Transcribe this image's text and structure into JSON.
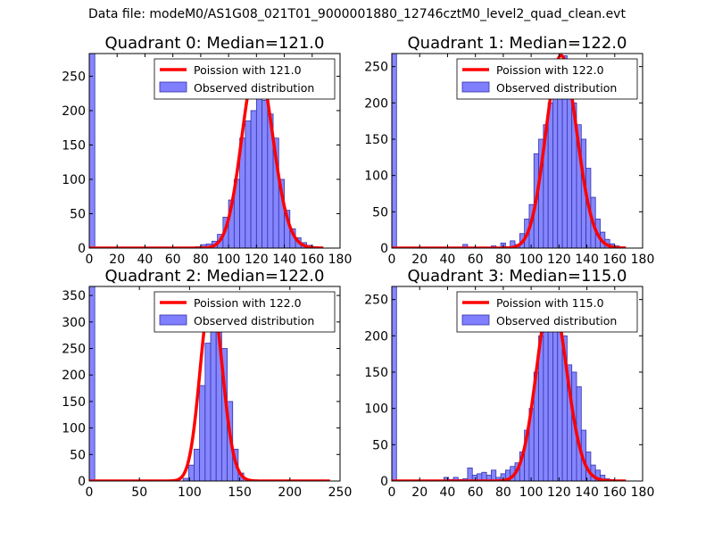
{
  "figure": {
    "suptitle": "Data file: modeM0/AS1G08_021T01_9000001880_12746cztM0_level2_quad_clean.evt"
  },
  "colors": {
    "bar_fill": "#7f7fff",
    "bar_edge": "#3333aa",
    "fit_line": "#ff0000",
    "axes": "#000000"
  },
  "chart_data": [
    {
      "type": "bar",
      "title": "Quadrant 0: Median=121.0",
      "xlim": [
        0,
        180
      ],
      "ylim": [
        0,
        283
      ],
      "xticks": [
        0,
        20,
        40,
        60,
        80,
        100,
        120,
        140,
        160,
        180
      ],
      "yticks": [
        0,
        50,
        100,
        150,
        200,
        250
      ],
      "legend": [
        "Poission with 121.0",
        "Observed distribution"
      ],
      "legend_position": "top-right",
      "fit_mean": 121.0,
      "fit_peak": 270,
      "bar_width": 4,
      "bins": [
        0,
        76,
        80,
        84,
        88,
        92,
        96,
        100,
        104,
        108,
        112,
        116,
        120,
        124,
        128,
        132,
        136,
        140,
        144,
        148,
        152,
        156
      ],
      "values": [
        283,
        2,
        5,
        6,
        10,
        20,
        45,
        70,
        100,
        160,
        185,
        200,
        230,
        215,
        195,
        160,
        100,
        55,
        28,
        15,
        8,
        4
      ]
    },
    {
      "type": "bar",
      "title": "Quadrant 1: Median=122.0",
      "xlim": [
        0,
        180
      ],
      "ylim": [
        0,
        268
      ],
      "xticks": [
        0,
        20,
        40,
        60,
        80,
        100,
        120,
        140,
        160,
        180
      ],
      "yticks": [
        0,
        50,
        100,
        150,
        200,
        250
      ],
      "legend": [
        "Poission with 122.0",
        "Observed distribution"
      ],
      "legend_position": "top-right",
      "fit_mean": 122.0,
      "fit_peak": 265,
      "bar_width": 3.4,
      "bins": [
        0,
        51.0,
        71.4,
        78.2,
        81.6,
        85.0,
        88.4,
        91.8,
        95.2,
        98.6,
        102.0,
        105.4,
        108.8,
        112.2,
        115.6,
        119.0,
        122.4,
        125.8,
        129.2,
        132.6,
        136.0,
        139.4,
        142.8,
        146.2,
        149.6,
        153.0,
        156.4,
        159.8
      ],
      "values": [
        268,
        5,
        3,
        7,
        2,
        10,
        5,
        20,
        40,
        60,
        130,
        150,
        170,
        200,
        220,
        240,
        265,
        230,
        200,
        170,
        150,
        110,
        70,
        40,
        22,
        12,
        6,
        3
      ]
    },
    {
      "type": "bar",
      "title": "Quadrant 2: Median=122.0",
      "xlim": [
        0,
        250
      ],
      "ylim": [
        0,
        367
      ],
      "xticks": [
        0,
        50,
        100,
        150,
        200,
        250
      ],
      "yticks": [
        0,
        50,
        100,
        150,
        200,
        250,
        300,
        350
      ],
      "legend": [
        "Poission with 122.0",
        "Observed distribution"
      ],
      "legend_position": "top-right",
      "fit_mean": 122.0,
      "fit_peak": 350,
      "bar_width": 5.5,
      "bins": [
        0,
        93.5,
        99.0,
        104.5,
        110.0,
        115.5,
        121.0,
        126.5,
        132.0,
        137.5,
        143.0,
        148.5
      ],
      "values": [
        367,
        5,
        30,
        60,
        180,
        260,
        350,
        330,
        250,
        150,
        60,
        15
      ]
    },
    {
      "type": "bar",
      "title": "Quadrant 3: Median=115.0",
      "xlim": [
        0,
        180
      ],
      "ylim": [
        0,
        268
      ],
      "xticks": [
        0,
        20,
        40,
        60,
        80,
        100,
        120,
        140,
        160,
        180
      ],
      "yticks": [
        0,
        50,
        100,
        150,
        200,
        250
      ],
      "legend": [
        "Poission with 115.0",
        "Observed distribution"
      ],
      "legend_position": "top-right",
      "fit_mean": 115.0,
      "fit_peak": 255,
      "bar_width": 3.4,
      "bins": [
        0,
        37.4,
        40.8,
        44.2,
        47.6,
        51.0,
        54.4,
        57.8,
        61.2,
        64.6,
        68.0,
        71.4,
        74.8,
        78.2,
        81.6,
        85.0,
        88.4,
        91.8,
        95.2,
        98.6,
        102.0,
        105.4,
        108.8,
        112.2,
        115.6,
        119.0,
        122.4,
        125.8,
        129.2,
        132.6,
        136.0,
        139.4,
        142.8,
        146.2,
        149.6,
        153.0,
        156.4
      ],
      "values": [
        268,
        5,
        2,
        5,
        2,
        3,
        18,
        8,
        10,
        12,
        8,
        15,
        5,
        10,
        15,
        20,
        25,
        40,
        70,
        100,
        150,
        200,
        230,
        215,
        245,
        230,
        200,
        160,
        150,
        130,
        70,
        40,
        22,
        15,
        8,
        3,
        2
      ]
    }
  ]
}
